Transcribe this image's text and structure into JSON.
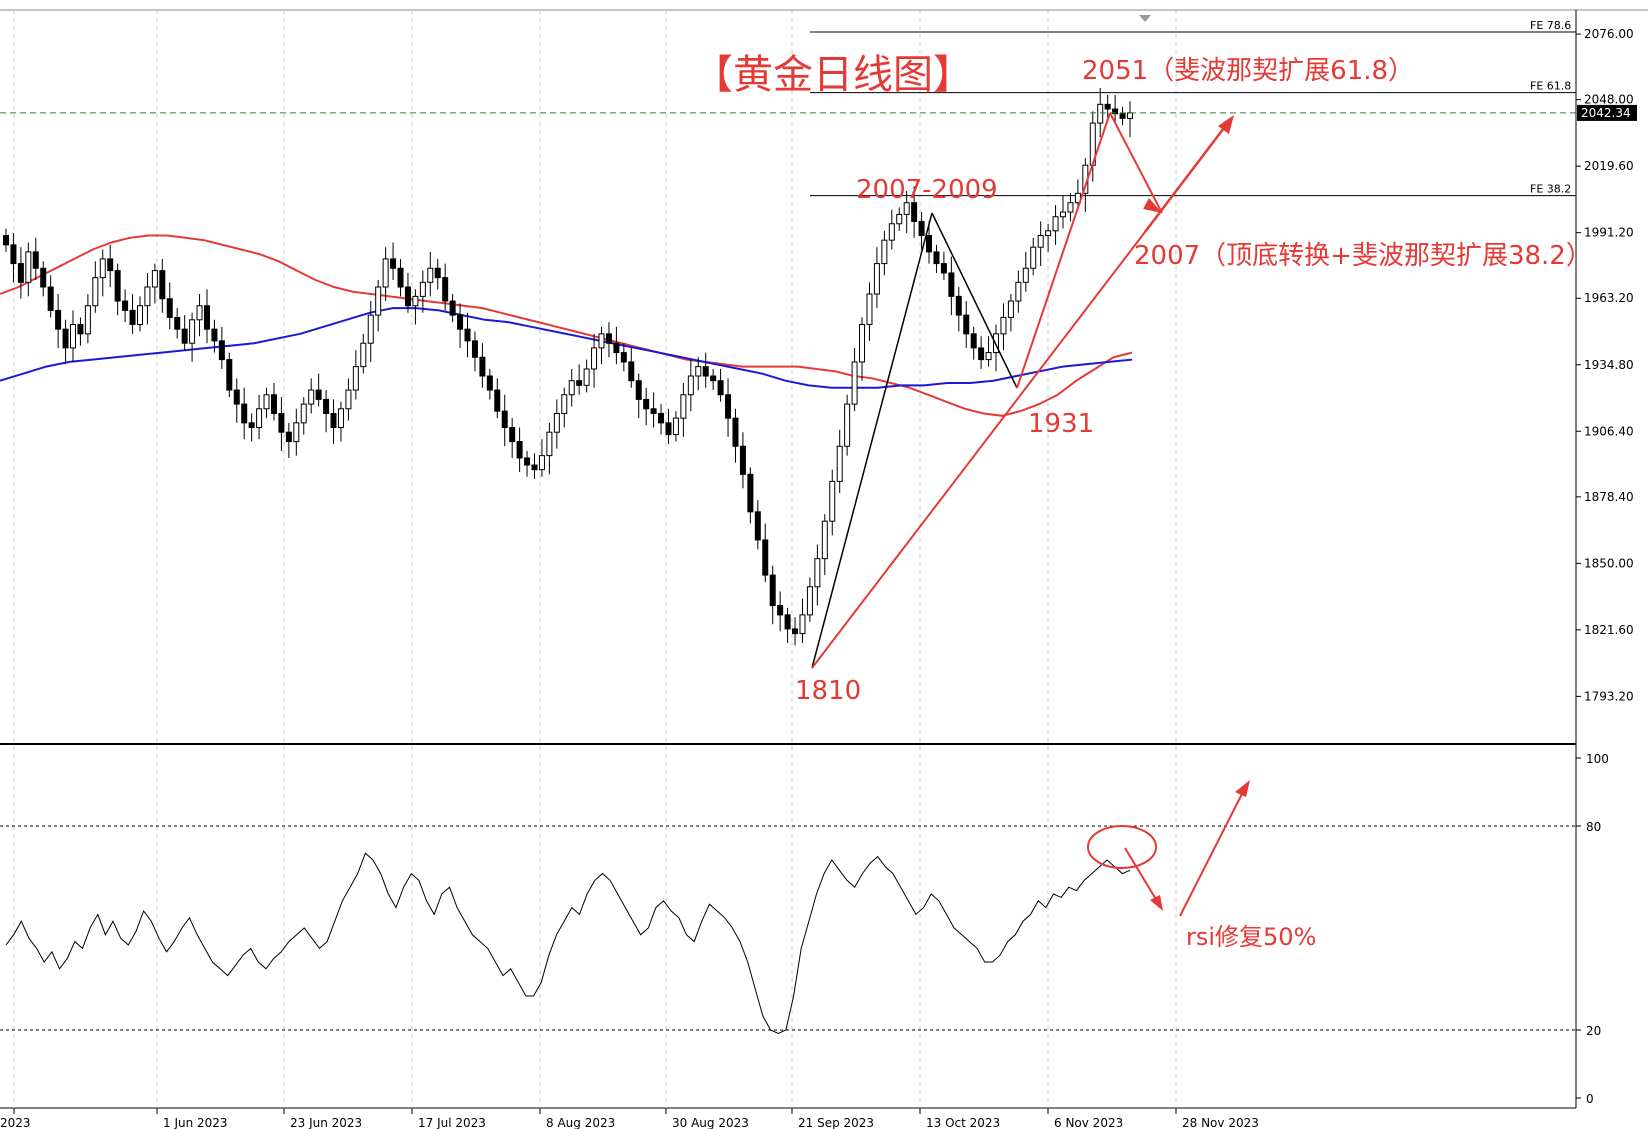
{
  "chart_data": {
    "type": "candlestick",
    "title": "【黄金日线图】",
    "current_price": "2042.34",
    "price_axis": {
      "ticks": [
        "2076.00",
        "2048.00",
        "2019.60",
        "1991.20",
        "1963.20",
        "1934.80",
        "1906.40",
        "1878.40",
        "1850.00",
        "1821.60",
        "1793.20"
      ],
      "range": [
        1775,
        2085
      ]
    },
    "date_axis": {
      "ticks": [
        "2023",
        "1 Jun 2023",
        "23 Jun 2023",
        "17 Jul 2023",
        "8 Aug 2023",
        "30 Aug 2023",
        "21 Sep 2023",
        "13 Oct 2023",
        "6 Nov 2023",
        "28 Nov 2023"
      ]
    },
    "fib_levels": [
      {
        "label": "FE 78.6",
        "price": 2092.6
      },
      {
        "label": "FE 61.8",
        "price": 2051
      },
      {
        "label": "FE 38.2",
        "price": 2007
      }
    ],
    "annotations": [
      {
        "text": "2051（斐波那契扩展61.8）"
      },
      {
        "text": "2007-2009"
      },
      {
        "text": "2007（顶底转换+斐波那契扩展38.2）"
      },
      {
        "text": "1931"
      },
      {
        "text": "1810"
      },
      {
        "text": "rsi修复50%"
      }
    ],
    "closes": [
      1986,
      1978,
      1970,
      1983,
      1976,
      1968,
      1958,
      1950,
      1942,
      1952,
      1948,
      1960,
      1972,
      1980,
      1975,
      1962,
      1958,
      1952,
      1960,
      1968,
      1975,
      1963,
      1955,
      1950,
      1944,
      1954,
      1960,
      1950,
      1945,
      1937,
      1924,
      1918,
      1910,
      1908,
      1916,
      1922,
      1914,
      1906,
      1902,
      1910,
      1918,
      1924,
      1920,
      1914,
      1908,
      1916,
      1924,
      1934,
      1944,
      1956,
      1968,
      1980,
      1976,
      1968,
      1960,
      1964,
      1970,
      1976,
      1972,
      1962,
      1956,
      1950,
      1945,
      1938,
      1930,
      1924,
      1915,
      1908,
      1902,
      1895,
      1892,
      1890,
      1896,
      1906,
      1914,
      1922,
      1928,
      1926,
      1933,
      1942,
      1948,
      1944,
      1940,
      1936,
      1928,
      1920,
      1916,
      1914,
      1910,
      1905,
      1912,
      1922,
      1930,
      1934,
      1930,
      1928,
      1922,
      1912,
      1900,
      1888,
      1872,
      1860,
      1845,
      1832,
      1828,
      1822,
      1820,
      1828,
      1840,
      1852,
      1868,
      1885,
      1900,
      1918,
      1936,
      1952,
      1965,
      1978,
      1988,
      1995,
      1999,
      2004,
      1996,
      1990,
      1983,
      1978,
      1974,
      1964,
      1956,
      1948,
      1942,
      1937,
      1940,
      1948,
      1955,
      1962,
      1970,
      1976,
      1985,
      1990,
      1992,
      1998,
      2000,
      2004,
      2008,
      2020,
      2038,
      2046,
      2044,
      2042,
      2040,
      2042.34
    ],
    "ma_fast": [
      1965,
      1968,
      1972,
      1976,
      1980,
      1984,
      1987,
      1989,
      1990,
      1990,
      1989,
      1988,
      1986,
      1984,
      1982,
      1979,
      1975,
      1971,
      1968,
      1966,
      1965,
      1964,
      1963,
      1962,
      1961,
      1960,
      1959,
      1957,
      1955,
      1953,
      1951,
      1949,
      1947,
      1945,
      1943,
      1941,
      1939,
      1937,
      1936,
      1935,
      1934,
      1934,
      1934,
      1934,
      1933,
      1932,
      1930,
      1929,
      1927,
      1925,
      1922,
      1919,
      1916,
      1914,
      1913,
      1915,
      1918,
      1922,
      1928,
      1933,
      1938,
      1940
    ],
    "ma_slow": [
      1928,
      1931,
      1934,
      1936,
      1937,
      1938,
      1939,
      1940,
      1941,
      1942,
      1943,
      1944,
      1946,
      1948,
      1951,
      1954,
      1957,
      1959,
      1959,
      1958,
      1956,
      1954,
      1953,
      1951,
      1949,
      1947,
      1945,
      1943,
      1941,
      1939,
      1937,
      1935,
      1933,
      1931,
      1928,
      1926,
      1925,
      1925,
      1925,
      1926,
      1926,
      1927,
      1927,
      1928,
      1930,
      1932,
      1934,
      1935,
      1936,
      1937
    ],
    "rsi": {
      "levels": [
        100,
        80,
        20,
        0
      ],
      "range": [
        0,
        100
      ],
      "values": [
        45,
        48,
        52,
        47,
        44,
        40,
        43,
        38,
        41,
        46,
        44,
        50,
        54,
        48,
        52,
        47,
        45,
        49,
        55,
        52,
        47,
        43,
        46,
        50,
        53,
        48,
        44,
        40,
        38,
        36,
        39,
        42,
        44,
        40,
        38,
        41,
        43,
        46,
        48,
        50,
        47,
        44,
        46,
        52,
        58,
        62,
        66,
        72,
        70,
        66,
        60,
        56,
        62,
        66,
        64,
        58,
        54,
        60,
        62,
        56,
        52,
        48,
        46,
        44,
        40,
        36,
        38,
        34,
        30,
        30,
        34,
        42,
        48,
        52,
        56,
        54,
        60,
        64,
        66,
        64,
        60,
        56,
        52,
        48,
        50,
        56,
        58,
        55,
        53,
        48,
        46,
        52,
        57,
        55,
        53,
        50,
        46,
        40,
        32,
        24,
        20,
        19,
        20,
        30,
        44,
        52,
        60,
        66,
        70,
        67,
        64,
        62,
        66,
        69,
        71,
        68,
        66,
        62,
        58,
        54,
        56,
        60,
        58,
        54,
        50,
        48,
        46,
        44,
        40,
        40,
        42,
        46,
        48,
        52,
        54,
        58,
        56,
        60,
        59,
        62,
        61,
        64,
        66,
        68,
        70,
        68,
        66,
        67
      ]
    }
  }
}
